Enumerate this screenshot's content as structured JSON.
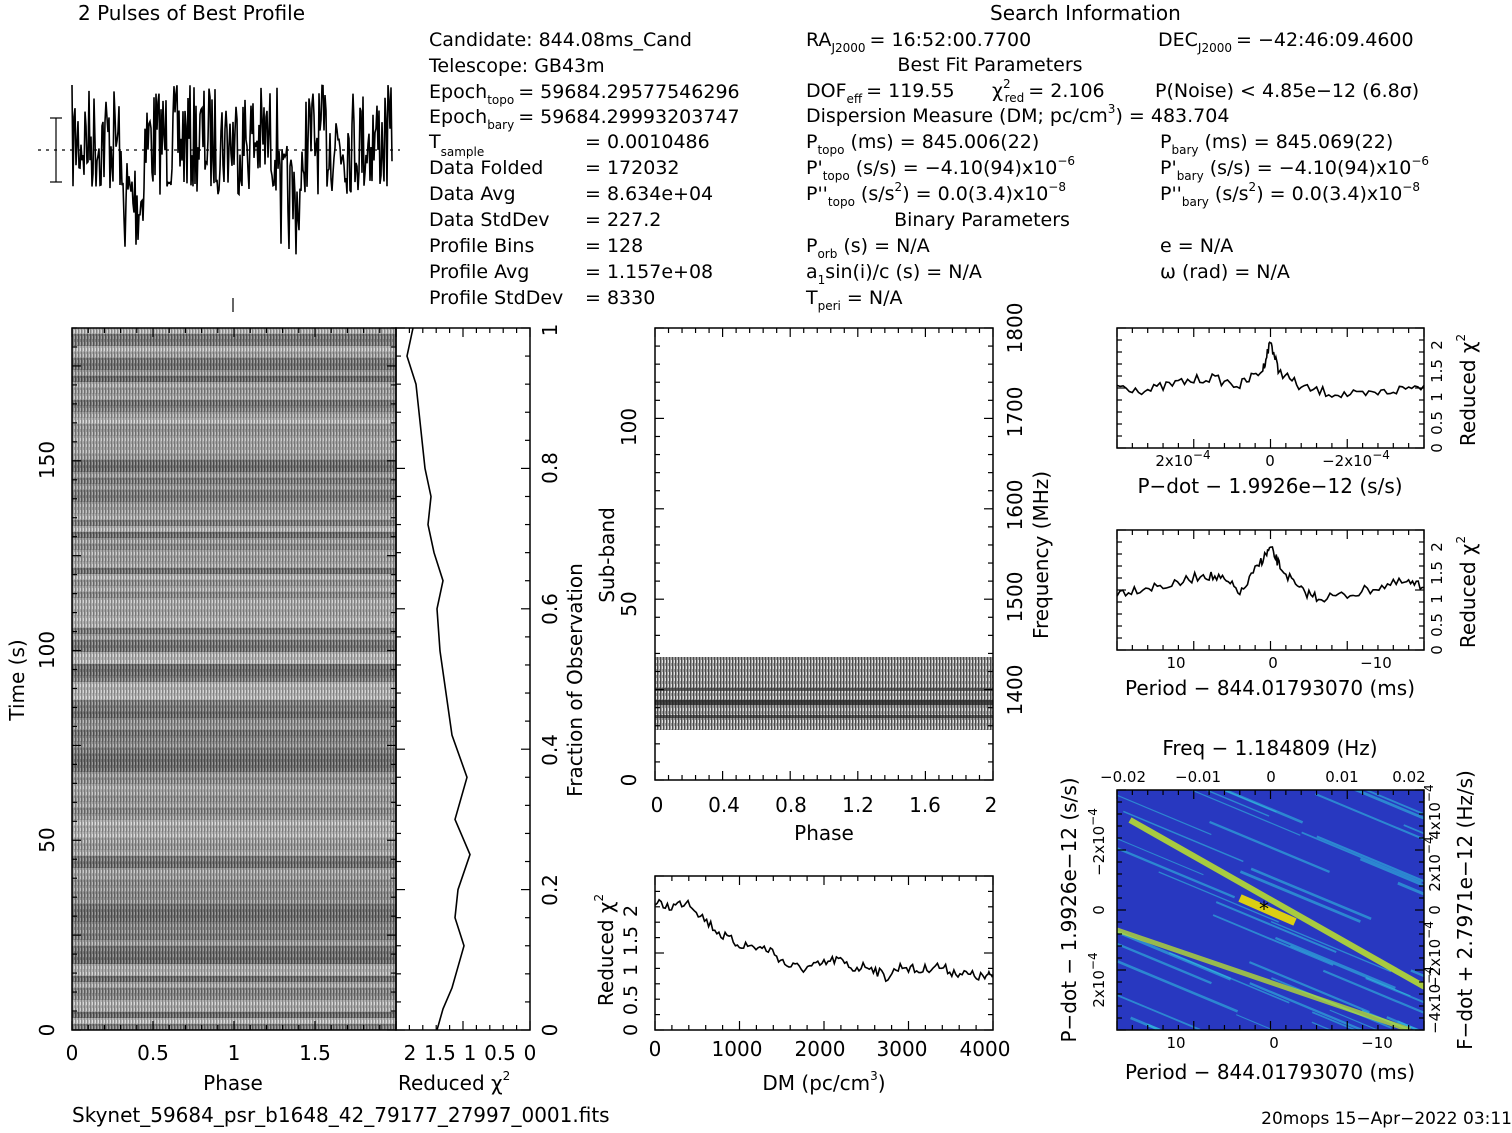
{
  "header": {
    "profile_title": "2 Pulses of Best Profile",
    "search_title": "Search Information",
    "best_fit_title": "Best Fit Parameters",
    "binary_title": "Binary Parameters"
  },
  "info": {
    "candidate": "Candidate:  844.08ms_Cand",
    "telescope": "Telescope:  GB43m",
    "epoch_topo_lbl": "Epoch",
    "epoch_topo_sub": "topo",
    "epoch_topo_val": "= 59684.29577546296",
    "epoch_bary_lbl": "Epoch",
    "epoch_bary_sub": "bary",
    "epoch_bary_val": "= 59684.29993203747",
    "tsample_lbl": "T",
    "tsample_sub": "sample",
    "tsample_val": "=   0.0010486",
    "data_folded_lbl": "Data Folded",
    "data_folded_val": "=   172032",
    "data_avg_lbl": "Data Avg",
    "data_avg_val": "=   8.634e+04",
    "data_std_lbl": "Data StdDev",
    "data_std_val": "=   227.2",
    "prof_bins_lbl": "Profile Bins",
    "prof_bins_val": "=   128",
    "prof_avg_lbl": "Profile Avg",
    "prof_avg_val": "=   1.157e+08",
    "prof_std_lbl": "Profile StdDev",
    "prof_std_val": "=   8330"
  },
  "search": {
    "ra_lbl": "RA",
    "ra_sub": "J2000",
    "ra_val": "= 16:52:00.7700",
    "dec_lbl": "DEC",
    "dec_sub": "J2000",
    "dec_val": "= −42:46:09.4600",
    "dof_lbl": "DOF",
    "dof_sub": "eff",
    "dof_val": "= 119.55",
    "chi_lbl": "χ",
    "chi_sup": "2",
    "chi_sub": "red",
    "chi_val": "= 2.106",
    "pnoise": "P(Noise) < 4.85e−12   (6.8σ)",
    "dm_lbl": "Dispersion Measure (DM; pc/cm",
    "dm_sup": "3",
    "dm_val": ") = 483.704",
    "ptopo_lbl": "P",
    "ptopo_sub": "topo",
    "ptopo_val": "(ms)  =   845.006(22)",
    "pbary_lbl": "P",
    "pbary_sub": "bary",
    "pbary_val": "(ms)  =   845.069(22)",
    "pdtopo_lbl": "P'",
    "pdtopo_sub": "topo",
    "pdtopo_val": "(s/s) = −4.10(94)x10",
    "pdtopo_exp": "−6",
    "pdbary_lbl": "P'",
    "pdbary_sub": "bary",
    "pdbary_val": "(s/s) = −4.10(94)x10",
    "pdbary_exp": "−6",
    "pddtopo_lbl": "P''",
    "pddtopo_sub": "topo",
    "pddtopo_val": "(s/s",
    "pddtopo_sup": "2",
    "pddtopo_val2": ") = 0.0(3.4)x10",
    "pddtopo_exp": "−8",
    "pddbary_lbl": "P''",
    "pddbary_sub": "bary",
    "pddbary_val": "(s/s",
    "pddbary_sup": "2",
    "pddbary_val2": ") = 0.0(3.4)x10",
    "pddbary_exp": "−8",
    "porb_lbl": "P",
    "porb_sub": "orb",
    "porb_val": "(s) = N/A",
    "e_val": "e = N/A",
    "a1_lbl": "a",
    "a1_sub": "1",
    "a1_val": "sin(i)/c (s) = N/A",
    "omega_val": "ω (rad) = N/A",
    "tperi_lbl": "T",
    "tperi_sub": "peri",
    "tperi_val": "= N/A"
  },
  "footer": {
    "filename": "Skynet_59684_psr_b1648_42_79177_27997_0001.fits",
    "stamp": "20mops 15−Apr−2022 03:11"
  },
  "colors": {
    "ppdot_low": "#2030b8",
    "ppdot_mid": "#30c8e0",
    "ppdot_high": "#c8f020",
    "ppdot_peak": "#f0e000"
  },
  "chart_data": [
    {
      "id": "time_phase",
      "type": "heatmap",
      "xlabel": "Phase",
      "ylabel": "Time (s)",
      "xlim": [
        0,
        2
      ],
      "ylim": [
        0,
        185
      ],
      "xticks": [
        "0",
        "0.5",
        "1",
        "1.5"
      ],
      "yticks": [
        "0",
        "50",
        "100",
        "150"
      ]
    },
    {
      "id": "time_chi",
      "type": "line",
      "xlabel": "Reduced",
      "xlabel_sup": "2",
      "xticks": [
        "2",
        "1.5",
        "1",
        "0.5",
        "0"
      ],
      "y2label": "Fraction of Observation",
      "y2ticks": [
        "0",
        "0.2",
        "0.4",
        "0.6",
        "0.8",
        "1"
      ],
      "x": [
        1.55,
        1.45,
        1.3,
        1.2,
        1.1,
        1.25,
        1.2,
        1.0,
        1.25,
        1.05,
        1.3,
        1.4,
        1.5,
        1.55,
        1.45,
        1.6,
        1.7,
        1.65,
        1.75,
        1.8,
        1.85,
        1.9,
        2.05,
        1.95
      ],
      "y": [
        0.0,
        0.03,
        0.06,
        0.09,
        0.12,
        0.16,
        0.2,
        0.25,
        0.3,
        0.36,
        0.42,
        0.48,
        0.54,
        0.6,
        0.64,
        0.68,
        0.72,
        0.76,
        0.8,
        0.84,
        0.88,
        0.92,
        0.96,
        1.0
      ]
    },
    {
      "id": "subband_phase",
      "type": "heatmap",
      "xlabel": "Phase",
      "ylabel": "Sub-band",
      "y2label": "Frequency (MHz)",
      "xlim": [
        0,
        2
      ],
      "ylim": [
        0,
        128
      ],
      "xticks": [
        "0",
        "0.4",
        "0.8",
        "1.2",
        "1.6",
        "2"
      ],
      "yticks": [
        "0",
        "50",
        "100"
      ],
      "y2ticks": [
        "1400",
        "1500",
        "1600",
        "1700",
        "1800"
      ],
      "occupied_subbands": [
        14,
        35
      ]
    },
    {
      "id": "dm_chi",
      "type": "line",
      "xlabel": "DM (pc/cm",
      "xlabel_sup": "3",
      "xlabel_end": ")",
      "ylabel": "Reduced",
      "ylabel_sup": "2",
      "xlim": [
        0,
        4100
      ],
      "ylim": [
        0,
        2.5
      ],
      "xticks": [
        "0",
        "1000",
        "2000",
        "3000",
        "4000"
      ],
      "yticks": [
        "0",
        "0.5",
        "1",
        "1.5",
        "2"
      ],
      "x": [
        0,
        200,
        400,
        600,
        800,
        1000,
        1200,
        1400,
        1600,
        1800,
        2000,
        2200,
        2400,
        2600,
        2800,
        3000,
        3200,
        3400,
        3600,
        3800,
        4000,
        4100
      ],
      "y": [
        2.05,
        2.0,
        2.1,
        1.8,
        1.55,
        1.4,
        1.35,
        1.3,
        1.05,
        1.0,
        1.05,
        1.15,
        1.0,
        1.05,
        0.85,
        1.05,
        0.95,
        1.05,
        0.95,
        0.9,
        0.85,
        0.9
      ]
    },
    {
      "id": "pdot_chi",
      "type": "line",
      "xlabel": "P−dot − 1.9926e−12 (s/s)",
      "ylabel": "Reduced",
      "ylabel_sup": "2",
      "ylim": [
        0,
        2.3
      ],
      "xticks": [
        "2x10",
        "0",
        "−2x10"
      ],
      "xtick_exp": "−4",
      "yticks": [
        "0",
        "0.5",
        "1",
        "1.5",
        "2"
      ],
      "x": [
        -1.0,
        -0.8,
        -0.6,
        -0.4,
        -0.2,
        -0.05,
        0.0,
        0.05,
        0.2,
        0.4,
        0.6,
        0.8,
        1.0
      ],
      "y": [
        1.2,
        1.1,
        1.25,
        1.35,
        1.2,
        1.5,
        2.05,
        1.5,
        1.15,
        1.05,
        1.0,
        1.1,
        1.2
      ]
    },
    {
      "id": "period_chi",
      "type": "line",
      "xlabel": "Period − 844.01793070 (ms)",
      "ylabel": "Reduced",
      "ylabel_sup": "2",
      "ylim": [
        0,
        2.3
      ],
      "xticks": [
        "10",
        "0",
        "−10"
      ],
      "yticks": [
        "0",
        "0.5",
        "1",
        "1.5",
        "2"
      ],
      "x": [
        16,
        13,
        10,
        7,
        5,
        3,
        1,
        0,
        -1,
        -3,
        -5,
        -8,
        -11,
        -14,
        -16
      ],
      "y": [
        1.1,
        1.2,
        1.25,
        1.45,
        1.35,
        1.1,
        1.7,
        1.95,
        1.6,
        1.15,
        1.0,
        1.05,
        1.2,
        1.3,
        1.2
      ]
    },
    {
      "id": "p_pdot_plane",
      "type": "heatmap",
      "top_label": "Freq − 1.184809 (Hz)",
      "xlabel": "Period − 844.01793070 (ms)",
      "ylabel": "P−dot − 1.9926e−12 (s/s)",
      "y2label": "F−dot + 2.7971e−12 (Hz/s)",
      "xticks": [
        "10",
        "0",
        "−10"
      ],
      "top_ticks": [
        "−0.02",
        "−0.01",
        "0",
        "0.01",
        "0.02"
      ],
      "yticks": [
        "2x10",
        "0",
        "−2x10"
      ],
      "ytick_exp": "−4",
      "y2ticks": [
        "−4x10",
        "−2x10",
        "0",
        "2x10",
        "4x10"
      ],
      "y2tick_exp": "−4",
      "best_marker": [
        -1,
        0
      ]
    }
  ]
}
